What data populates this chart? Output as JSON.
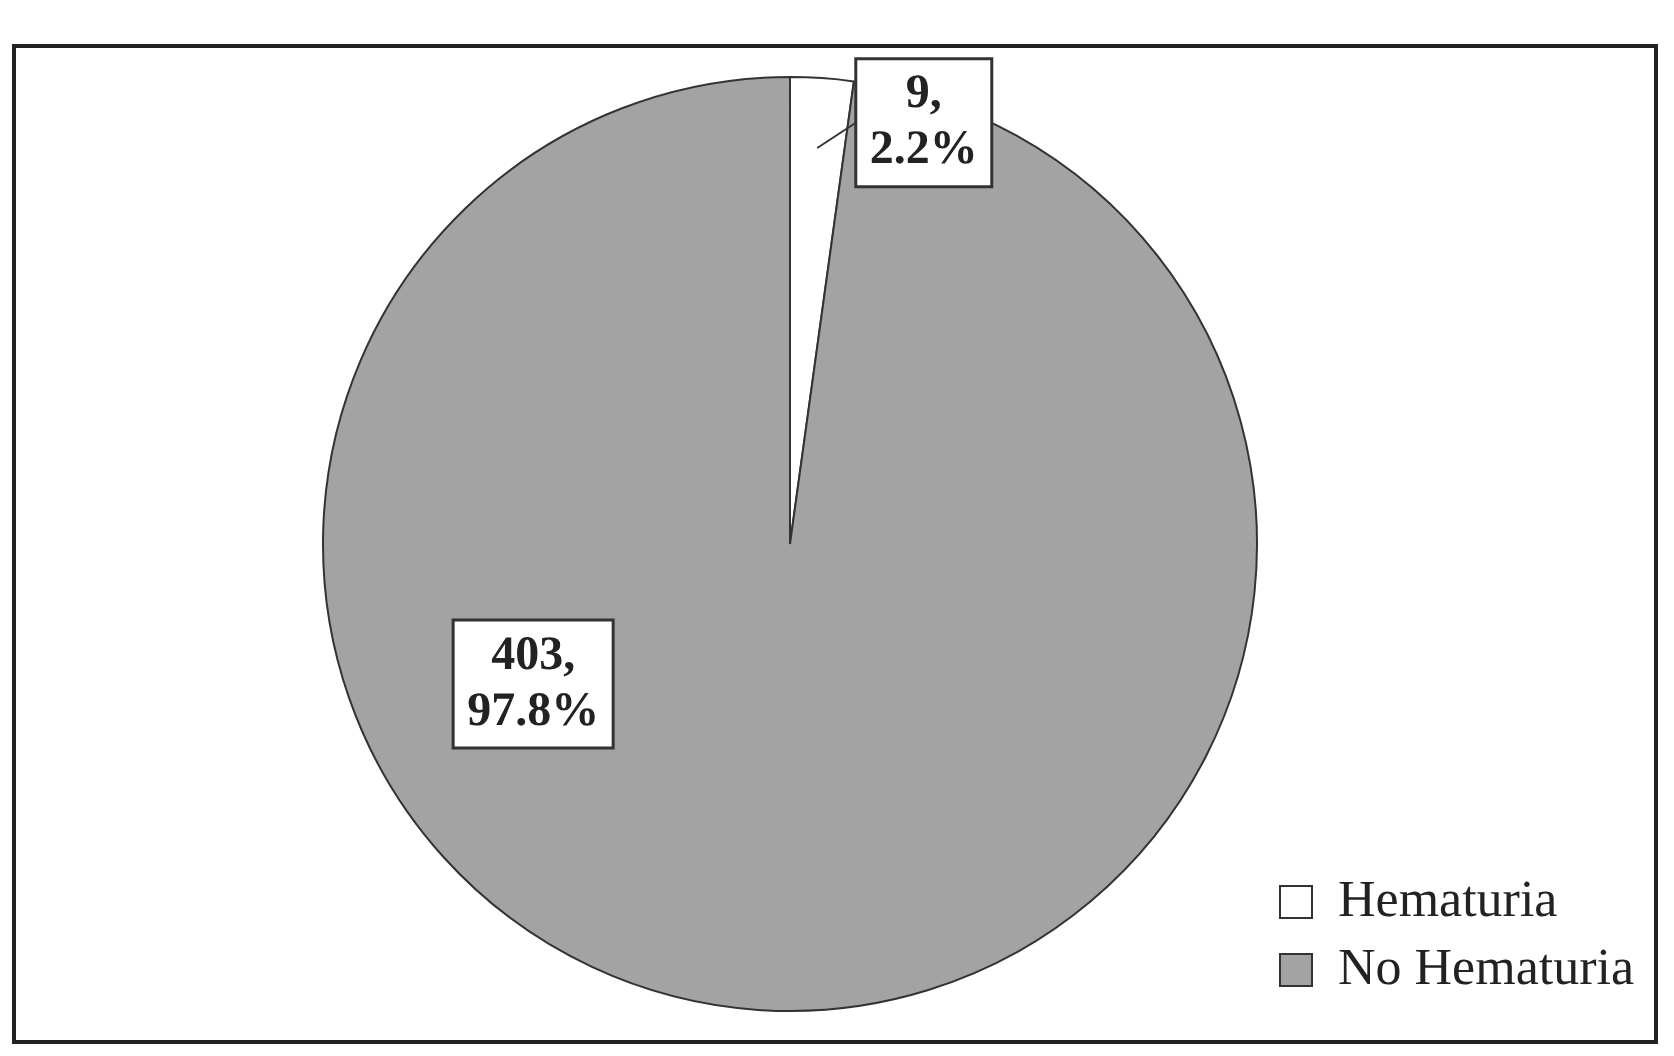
{
  "chart_data": {
    "type": "pie",
    "categories": [
      "Hematuria",
      "No Hematuria"
    ],
    "values": [
      9,
      403
    ],
    "colors": [
      "#ffffff",
      "#a3a3a3"
    ],
    "value_labels": [
      "9,\n2.2%",
      "403,\n97.8%"
    ],
    "legend": "bottom right"
  }
}
